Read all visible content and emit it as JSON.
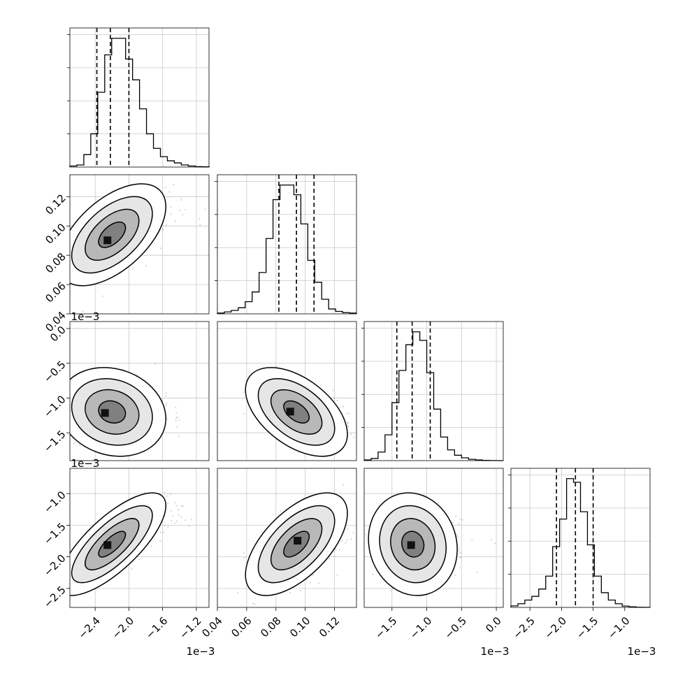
{
  "chart_data": {
    "type": "corner",
    "note_style": "posterior corner plot of 4 parameters: 1D histograms on diagonal (dashed lines at 16/50/84 percentiles), 2D scatter + density + contours below diagonal",
    "grid": true,
    "parameters": [
      {
        "range": [
          -0.0027,
          -0.00105
        ],
        "ticks": [
          -0.0024,
          -0.002,
          -0.0016,
          -0.0012
        ],
        "tick_labels": [
          "−2.4",
          "−2.0",
          "−1.6",
          "−1.2"
        ],
        "offset_label": "1e−3",
        "quantiles": [
          -0.00238,
          -0.00222,
          -0.002
        ]
      },
      {
        "range": [
          0.04,
          0.135
        ],
        "ticks": [
          0.04,
          0.06,
          0.08,
          0.1,
          0.12
        ],
        "tick_labels": [
          "0.04",
          "0.06",
          "0.08",
          "0.10",
          "0.12"
        ],
        "offset_label": "",
        "quantiles": [
          0.082,
          0.094,
          0.106
        ]
      },
      {
        "range": [
          -0.0019,
          0.0001
        ],
        "ticks": [
          -0.0015,
          -0.001,
          -0.0005,
          0.0
        ],
        "tick_labels": [
          "−1.5",
          "−1.0",
          "−0.5",
          "0.0"
        ],
        "offset_label": "1e−3",
        "quantiles": [
          -0.00143,
          -0.00121,
          -0.00095
        ]
      },
      {
        "range": [
          -0.0028,
          -0.0006
        ],
        "ticks": [
          -0.0025,
          -0.002,
          -0.0015,
          -0.001
        ],
        "tick_labels": [
          "−2.5",
          "−2.0",
          "−1.5",
          "−1.0"
        ],
        "offset_label": "1e−3",
        "quantiles": [
          -0.00208,
          -0.00178,
          -0.0015
        ]
      }
    ],
    "histograms": [
      {
        "bin_edges_start": -0.0027,
        "bin_width": 8.26e-05,
        "counts": [
          0.5,
          1,
          6,
          16,
          36,
          54,
          62,
          62,
          52,
          42,
          28,
          16,
          9,
          5,
          3,
          2,
          1,
          0.5,
          0.2,
          0.1
        ]
      },
      {
        "bin_edges_start": 0.04,
        "bin_width": 0.00475,
        "counts": [
          0.3,
          0.8,
          1.4,
          2.5,
          5,
          9,
          17,
          31,
          47,
          53,
          53,
          49,
          37,
          22,
          13,
          6,
          2,
          1,
          0.5,
          0.3
        ]
      },
      {
        "bin_edges_start": -0.0019,
        "bin_width": 0.0001,
        "counts": [
          0.3,
          1,
          4,
          12,
          27,
          42,
          54,
          60,
          56,
          41,
          24,
          11,
          5,
          2.5,
          1.3,
          0.6,
          0.3,
          0.1,
          0.05,
          0.0
        ]
      },
      {
        "bin_edges_start": -0.0028,
        "bin_width": 0.00011,
        "counts": [
          0.8,
          2,
          4,
          6,
          10,
          17,
          33,
          48,
          70,
          68,
          52,
          34,
          17,
          8,
          4,
          2,
          0.7,
          0.3,
          0.1,
          0.05
        ]
      }
    ],
    "pairs": [
      {
        "x": 0,
        "y": 1,
        "mean": [
          -0.0022,
          0.094
        ],
        "sd": [
          0.00022,
          0.012
        ],
        "rho": 0.55,
        "peak": [
          -0.00225,
          0.09
        ]
      },
      {
        "x": 0,
        "y": 2,
        "mean": [
          -0.0022,
          -0.0012
        ],
        "sd": [
          0.00022,
          0.00022
        ],
        "rho": -0.15,
        "peak": [
          -0.00228,
          -0.00122
        ]
      },
      {
        "x": 1,
        "y": 2,
        "mean": [
          0.094,
          -0.0012
        ],
        "sd": [
          0.012,
          0.00022
        ],
        "rho": -0.5,
        "peak": [
          0.09,
          -0.0012
        ]
      },
      {
        "x": 0,
        "y": 3,
        "mean": [
          -0.0022,
          -0.0018
        ],
        "sd": [
          0.00022,
          0.00028
        ],
        "rho": 0.75,
        "peak": [
          -0.00225,
          -0.00182
        ]
      },
      {
        "x": 1,
        "y": 3,
        "mean": [
          0.094,
          -0.0018
        ],
        "sd": [
          0.012,
          0.00028
        ],
        "rho": 0.6,
        "peak": [
          0.095,
          -0.00175
        ]
      },
      {
        "x": 2,
        "y": 3,
        "mean": [
          -0.0012,
          -0.0018
        ],
        "sd": [
          0.00022,
          0.00028
        ],
        "rho": -0.1,
        "peak": [
          -0.00122,
          -0.00182
        ]
      }
    ],
    "contour_levels_sigma": [
      0.5,
      1.0,
      1.5,
      2.0
    ],
    "scatter_points_per_panel": 700
  }
}
